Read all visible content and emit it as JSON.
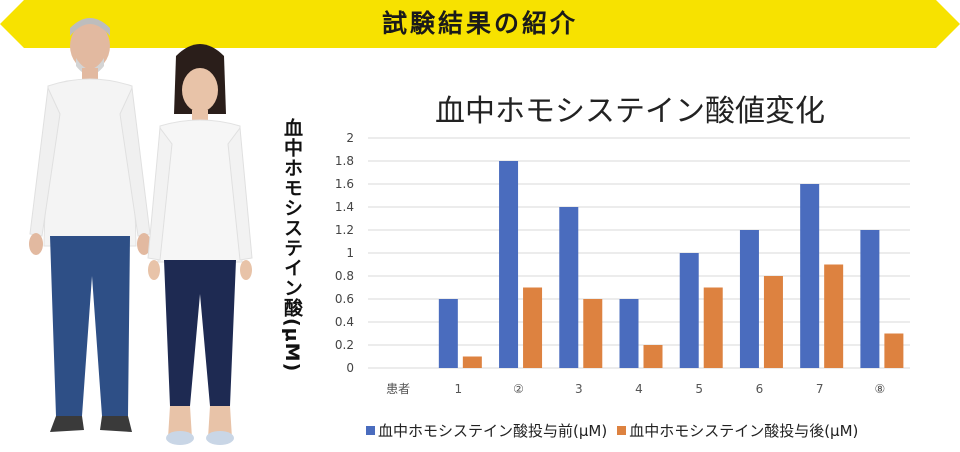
{
  "banner": {
    "title": "試験結果の紹介",
    "color": "#f7e200"
  },
  "chart_data": {
    "type": "bar",
    "title": "血中ホモシステイン酸値変化",
    "xlabel": "",
    "ylabel": "血中ホモシステイン酸(μM)",
    "categories": [
      "患者",
      "1",
      "②",
      "3",
      "4",
      "5",
      "6",
      "7",
      "⑧"
    ],
    "series": [
      {
        "name": "血中ホモシステイン酸投与前(μM)",
        "color": "#4a6cbe",
        "values": [
          null,
          0.6,
          1.8,
          1.4,
          0.6,
          1.0,
          1.2,
          1.6,
          1.2
        ]
      },
      {
        "name": "血中ホモシステイン酸投与後(μM)",
        "color": "#dd8240",
        "values": [
          null,
          0.1,
          0.7,
          0.6,
          0.2,
          0.7,
          0.8,
          0.9,
          0.3
        ]
      }
    ],
    "ylim": [
      0,
      2
    ],
    "yticks": [
      "0",
      "0.2",
      "0.4",
      "0.6",
      "0.8",
      "1",
      "1.2",
      "1.4",
      "1.6",
      "1.8",
      "2"
    ],
    "grid": true,
    "legend_position": "bottom"
  },
  "icons": {
    "people_photo": "senior-couple-photo-icon"
  }
}
